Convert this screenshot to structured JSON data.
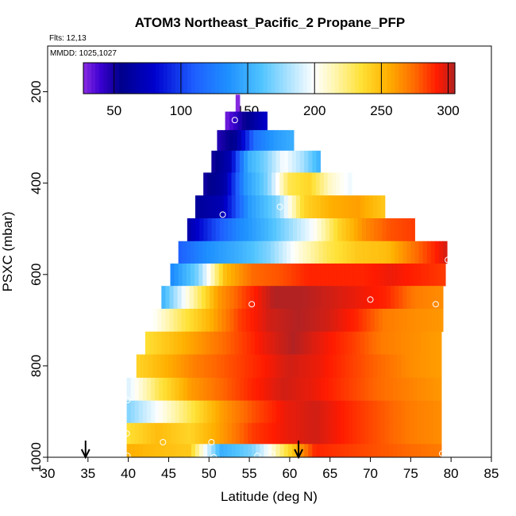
{
  "chart_data": {
    "type": "heatmap",
    "title": "ATOM3 Northeast_Pacific_2 Propane_PFP",
    "flights_label": "Flts: 12,13",
    "mmdd_label": "MMDD: 1025,1027",
    "xlabel": "Latitude (deg N)",
    "ylabel": "PSXC (mbar)",
    "xlim": [
      30,
      85
    ],
    "ylim": [
      1000,
      220
    ],
    "x_ticks": [
      30,
      35,
      40,
      45,
      50,
      55,
      60,
      65,
      70,
      75,
      80,
      85
    ],
    "y_ticks": [
      200,
      400,
      600,
      800,
      1000
    ],
    "colorbar": {
      "range": [
        27,
        305
      ],
      "ticks": [
        50,
        100,
        150,
        200,
        250,
        300
      ],
      "stops": [
        {
          "v": 27,
          "c": "#8a2be2"
        },
        {
          "v": 40,
          "c": "#3a00d0"
        },
        {
          "v": 55,
          "c": "#00008b"
        },
        {
          "v": 80,
          "c": "#0000cd"
        },
        {
          "v": 110,
          "c": "#1e5fff"
        },
        {
          "v": 135,
          "c": "#1e90ff"
        },
        {
          "v": 160,
          "c": "#4fc3ff"
        },
        {
          "v": 185,
          "c": "#bfe9ff"
        },
        {
          "v": 200,
          "c": "#ffffff"
        },
        {
          "v": 215,
          "c": "#fff6b0"
        },
        {
          "v": 235,
          "c": "#ffe135"
        },
        {
          "v": 255,
          "c": "#ffb000"
        },
        {
          "v": 275,
          "c": "#ff6a00"
        },
        {
          "v": 292,
          "c": "#ff1a00"
        },
        {
          "v": 305,
          "c": "#b22222"
        }
      ]
    },
    "profiles": [
      {
        "p": 225,
        "x0": 53.3,
        "x1": 53.8,
        "v": [
          28
        ]
      },
      {
        "p": 262,
        "x0": 52.0,
        "x1": 57.2,
        "v": [
          30,
          55,
          80
        ]
      },
      {
        "p": 306,
        "x0": 51.0,
        "x1": 60.5,
        "v": [
          45,
          60,
          120,
          140,
          150
        ]
      },
      {
        "p": 352,
        "x0": 50.3,
        "x1": 63.8,
        "v": [
          50,
          70,
          150,
          170,
          200,
          180,
          150
        ]
      },
      {
        "p": 402,
        "x0": 49.3,
        "x1": 67.7,
        "v": [
          50,
          65,
          140,
          170,
          230,
          240,
          210,
          195
        ]
      },
      {
        "p": 452,
        "x0": 48.3,
        "x1": 71.8,
        "v": [
          60,
          70,
          140,
          170,
          240,
          255,
          260,
          245
        ]
      },
      {
        "p": 502,
        "x0": 47.3,
        "x1": 75.5,
        "v": [
          65,
          100,
          130,
          150,
          175,
          200,
          240,
          265,
          280,
          285
        ]
      },
      {
        "p": 552,
        "x0": 46.2,
        "x1": 79.5,
        "v": [
          110,
          135,
          150,
          170,
          205,
          230,
          245,
          250,
          275,
          300
        ]
      },
      {
        "p": 600,
        "x0": 45.2,
        "x1": 79.3,
        "v": [
          130,
          170,
          250,
          275,
          280,
          290,
          290,
          290,
          295,
          290,
          285
        ]
      },
      {
        "p": 650,
        "x0": 44.1,
        "x1": 79.0,
        "v": [
          150,
          210,
          260,
          285,
          305,
          305,
          300,
          295,
          290,
          270,
          265
        ]
      },
      {
        "p": 700,
        "x0": 43.1,
        "x1": 79.0,
        "v": [
          200,
          230,
          255,
          285,
          300,
          305,
          300,
          290,
          270,
          265,
          262
        ]
      },
      {
        "p": 750,
        "x0": 42.1,
        "x1": 78.8,
        "v": [
          235,
          250,
          265,
          280,
          295,
          305,
          295,
          285,
          270,
          265,
          260
        ]
      },
      {
        "p": 800,
        "x0": 41.0,
        "x1": 78.8,
        "v": [
          240,
          255,
          270,
          280,
          290,
          300,
          295,
          285,
          275,
          265,
          260
        ]
      },
      {
        "p": 852,
        "x0": 39.8,
        "x1": 78.8,
        "v": [
          190,
          230,
          260,
          275,
          290,
          300,
          295,
          285,
          275,
          268,
          262
        ]
      },
      {
        "p": 900,
        "x0": 39.8,
        "x1": 78.8,
        "v": [
          170,
          200,
          230,
          260,
          280,
          295,
          300,
          290,
          280,
          270,
          265
        ]
      },
      {
        "p": 950,
        "x0": 39.8,
        "x1": 78.8,
        "v": [
          235,
          250,
          240,
          260,
          285,
          295,
          300,
          290,
          280,
          270,
          265
        ]
      },
      {
        "p": 992,
        "x0": 39.8,
        "x1": 78.8,
        "v": [
          255,
          250,
          245,
          150,
          170,
          230,
          290,
          285,
          280,
          275,
          270
        ]
      }
    ],
    "samples": [
      {
        "lat": 53.2,
        "p": 262
      },
      {
        "lat": 51.7,
        "p": 469
      },
      {
        "lat": 58.8,
        "p": 452
      },
      {
        "lat": 55.3,
        "p": 665
      },
      {
        "lat": 70.0,
        "p": 655
      },
      {
        "lat": 78.1,
        "p": 665
      },
      {
        "lat": 79.6,
        "p": 568
      },
      {
        "lat": 39.9,
        "p": 875
      },
      {
        "lat": 39.8,
        "p": 948
      },
      {
        "lat": 44.3,
        "p": 967
      },
      {
        "lat": 50.3,
        "p": 967
      },
      {
        "lat": 39.9,
        "p": 997
      },
      {
        "lat": 50.6,
        "p": 1000
      },
      {
        "lat": 56.0,
        "p": 997
      },
      {
        "lat": 57.8,
        "p": 993
      },
      {
        "lat": 78.9,
        "p": 992
      }
    ],
    "arrows": [
      34.7,
      61.1
    ]
  }
}
